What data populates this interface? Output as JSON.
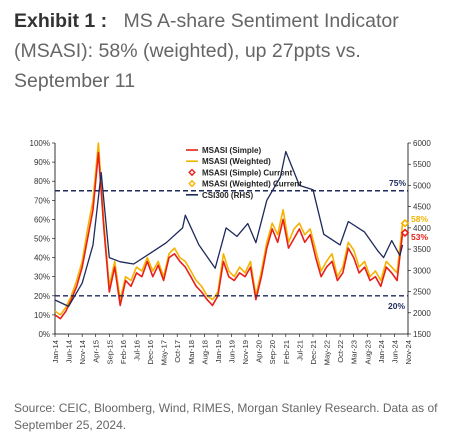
{
  "header": {
    "exhibit_label": "Exhibit 1 :",
    "title_text": "MS A-share Sentiment Indicator (MSASI): 58% (weighted), up 27ppts vs. September 11"
  },
  "footer": {
    "source": "Source: CEIC, Bloomberg, Wind, RIMES, Morgan Stanley Research. Data as of September 25, 2024."
  },
  "chart_data": {
    "type": "line",
    "title": "",
    "xlabel": "",
    "ylabel": "",
    "ylim": [
      0,
      100
    ],
    "y2lim": [
      1500,
      6000
    ],
    "yticks": [
      "0%",
      "10%",
      "20%",
      "30%",
      "40%",
      "50%",
      "60%",
      "70%",
      "80%",
      "90%",
      "100%"
    ],
    "y2ticks": [
      "1500",
      "2000",
      "2500",
      "3000",
      "3500",
      "4000",
      "4500",
      "5000",
      "5500",
      "6000"
    ],
    "xticks": [
      "Jan-14",
      "Jun-14",
      "Nov-14",
      "Apr-15",
      "Sep-15",
      "Feb-16",
      "Jul-16",
      "Dec-16",
      "May-17",
      "Oct-17",
      "Mar-18",
      "Aug-18",
      "Jan-19",
      "Jun-19",
      "Nov-19",
      "Apr-20",
      "Sep-20",
      "Feb-21",
      "Jul-21",
      "Dec-21",
      "May-22",
      "Oct-22",
      "Mar-23",
      "Aug-23",
      "Jan-24",
      "Jun-24",
      "Nov-24"
    ],
    "x_range": [
      "2014-01",
      "2024-11"
    ],
    "grid": false,
    "legend_position": "top-center",
    "reference_lines": [
      {
        "value": 75,
        "label": "75%"
      },
      {
        "value": 20,
        "label": "20%"
      }
    ],
    "current_points": [
      {
        "name": "MSASI (Simple) Current",
        "x": "2024-09",
        "y": 53,
        "label": "53%"
      },
      {
        "name": "MSASI (Weighted) Current",
        "x": "2024-09",
        "y": 58,
        "label": "58%"
      }
    ],
    "legend": [
      {
        "name": "MSASI (Simple)",
        "color": "#e8201a",
        "marker": "line"
      },
      {
        "name": "MSASI (Weighted)",
        "color": "#f5b300",
        "marker": "line"
      },
      {
        "name": "MSASI (Simple) Current",
        "color": "#e8201a",
        "marker": "diamond"
      },
      {
        "name": "MSASI (Weighted) Current",
        "color": "#f5b300",
        "marker": "diamond"
      },
      {
        "name": "CSI300 (RHS)",
        "color": "#1f2a5c",
        "marker": "line"
      }
    ],
    "series": [
      {
        "name": "MSASI (Simple)",
        "color": "#e8201a",
        "axis": "left",
        "x": [
          "2014-01",
          "2014-03",
          "2014-05",
          "2014-07",
          "2014-09",
          "2014-11",
          "2015-01",
          "2015-03",
          "2015-05",
          "2015-07",
          "2015-09",
          "2015-11",
          "2016-01",
          "2016-03",
          "2016-05",
          "2016-07",
          "2016-09",
          "2016-11",
          "2017-01",
          "2017-03",
          "2017-05",
          "2017-07",
          "2017-09",
          "2017-11",
          "2018-01",
          "2018-03",
          "2018-05",
          "2018-07",
          "2018-09",
          "2018-11",
          "2019-01",
          "2019-03",
          "2019-05",
          "2019-07",
          "2019-09",
          "2019-11",
          "2020-01",
          "2020-03",
          "2020-05",
          "2020-07",
          "2020-09",
          "2020-11",
          "2021-01",
          "2021-03",
          "2021-05",
          "2021-07",
          "2021-09",
          "2021-11",
          "2022-01",
          "2022-03",
          "2022-05",
          "2022-07",
          "2022-09",
          "2022-11",
          "2023-01",
          "2023-03",
          "2023-05",
          "2023-07",
          "2023-09",
          "2023-11",
          "2024-01",
          "2024-03",
          "2024-05",
          "2024-07",
          "2024-09"
        ],
        "values": [
          10,
          8,
          12,
          18,
          25,
          35,
          50,
          65,
          95,
          55,
          22,
          35,
          15,
          28,
          25,
          32,
          30,
          38,
          30,
          36,
          28,
          40,
          42,
          38,
          35,
          30,
          25,
          22,
          18,
          15,
          20,
          38,
          30,
          28,
          32,
          30,
          35,
          18,
          30,
          45,
          55,
          48,
          60,
          45,
          50,
          55,
          48,
          52,
          40,
          30,
          35,
          38,
          28,
          32,
          45,
          40,
          32,
          35,
          28,
          30,
          25,
          35,
          32,
          28,
          53
        ]
      },
      {
        "name": "MSASI (Weighted)",
        "color": "#f5b300",
        "axis": "left",
        "x": [
          "2014-01",
          "2014-03",
          "2014-05",
          "2014-07",
          "2014-09",
          "2014-11",
          "2015-01",
          "2015-03",
          "2015-05",
          "2015-07",
          "2015-09",
          "2015-11",
          "2016-01",
          "2016-03",
          "2016-05",
          "2016-07",
          "2016-09",
          "2016-11",
          "2017-01",
          "2017-03",
          "2017-05",
          "2017-07",
          "2017-09",
          "2017-11",
          "2018-01",
          "2018-03",
          "2018-05",
          "2018-07",
          "2018-09",
          "2018-11",
          "2019-01",
          "2019-03",
          "2019-05",
          "2019-07",
          "2019-09",
          "2019-11",
          "2020-01",
          "2020-03",
          "2020-05",
          "2020-07",
          "2020-09",
          "2020-11",
          "2021-01",
          "2021-03",
          "2021-05",
          "2021-07",
          "2021-09",
          "2021-11",
          "2022-01",
          "2022-03",
          "2022-05",
          "2022-07",
          "2022-09",
          "2022-11",
          "2023-01",
          "2023-03",
          "2023-05",
          "2023-07",
          "2023-09",
          "2023-11",
          "2024-01",
          "2024-03",
          "2024-05",
          "2024-07",
          "2024-09"
        ],
        "values": [
          12,
          10,
          14,
          20,
          28,
          38,
          55,
          70,
          100,
          58,
          25,
          38,
          18,
          30,
          28,
          35,
          33,
          40,
          33,
          38,
          30,
          42,
          45,
          40,
          38,
          33,
          28,
          25,
          20,
          18,
          22,
          42,
          33,
          30,
          35,
          32,
          38,
          20,
          33,
          48,
          58,
          52,
          65,
          48,
          55,
          58,
          52,
          55,
          44,
          33,
          38,
          42,
          30,
          35,
          48,
          44,
          35,
          38,
          30,
          33,
          28,
          38,
          35,
          32,
          58
        ]
      },
      {
        "name": "CSI300 (RHS)",
        "color": "#1f2a5c",
        "axis": "right",
        "x": [
          "2014-01",
          "2014-06",
          "2014-11",
          "2015-03",
          "2015-06",
          "2015-09",
          "2016-01",
          "2016-06",
          "2016-12",
          "2017-06",
          "2017-12",
          "2018-01",
          "2018-06",
          "2018-12",
          "2019-04",
          "2019-08",
          "2019-12",
          "2020-03",
          "2020-07",
          "2020-12",
          "2021-02",
          "2021-07",
          "2021-12",
          "2022-04",
          "2022-10",
          "2023-01",
          "2023-07",
          "2023-12",
          "2024-02",
          "2024-05",
          "2024-08",
          "2024-09"
        ],
        "values": [
          2300,
          2150,
          2700,
          3600,
          5300,
          3300,
          3200,
          3150,
          3400,
          3650,
          4000,
          4300,
          3600,
          3050,
          4000,
          3800,
          4100,
          3650,
          4650,
          5200,
          5800,
          5000,
          4900,
          3850,
          3600,
          4150,
          3900,
          3450,
          3300,
          3700,
          3350,
          3600
        ]
      }
    ]
  }
}
